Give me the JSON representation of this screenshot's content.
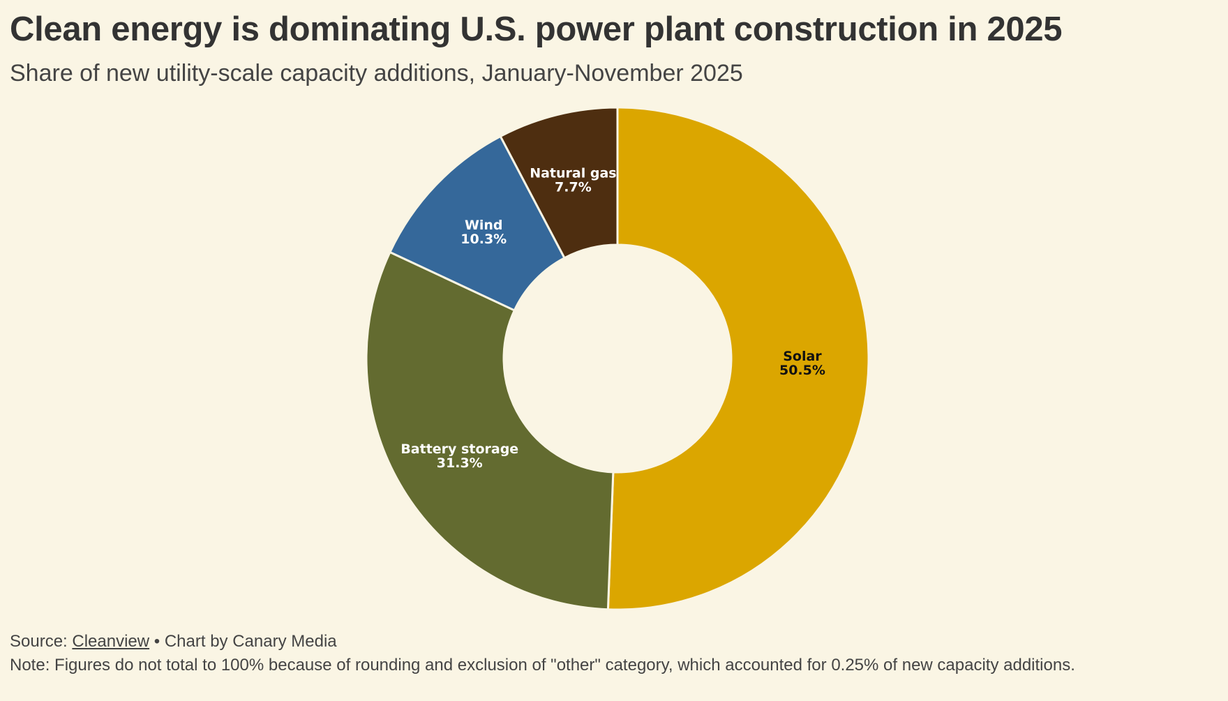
{
  "chart_data": {
    "type": "pie",
    "variant": "donut",
    "title": "Clean energy is dominating U.S. power plant construction in 2025",
    "subtitle": "Share of new utility-scale capacity additions, January-November 2025",
    "slices": [
      {
        "name": "Solar",
        "value": 50.5,
        "label": "50.5%",
        "color": "#dba600",
        "text_color": "#111111"
      },
      {
        "name": "Battery storage",
        "value": 31.3,
        "label": "31.3%",
        "color": "#636b30",
        "text_color": "#ffffff"
      },
      {
        "name": "Wind",
        "value": 10.3,
        "label": "10.3%",
        "color": "#35689a",
        "text_color": "#ffffff"
      },
      {
        "name": "Natural gas",
        "value": 7.7,
        "label": "7.7%",
        "color": "#4e2e10",
        "text_color": "#ffffff"
      }
    ]
  },
  "footer": {
    "source_prefix": "Source: ",
    "source_link": "Cleanview",
    "source_suffix": " • Chart by Canary Media",
    "note": "Note: Figures do not total to 100% because of rounding and exclusion of \"other\" category, which accounted for 0.25% of new capacity additions."
  },
  "colors": {
    "background": "#faf5e4",
    "separator": "#faf5e4"
  }
}
